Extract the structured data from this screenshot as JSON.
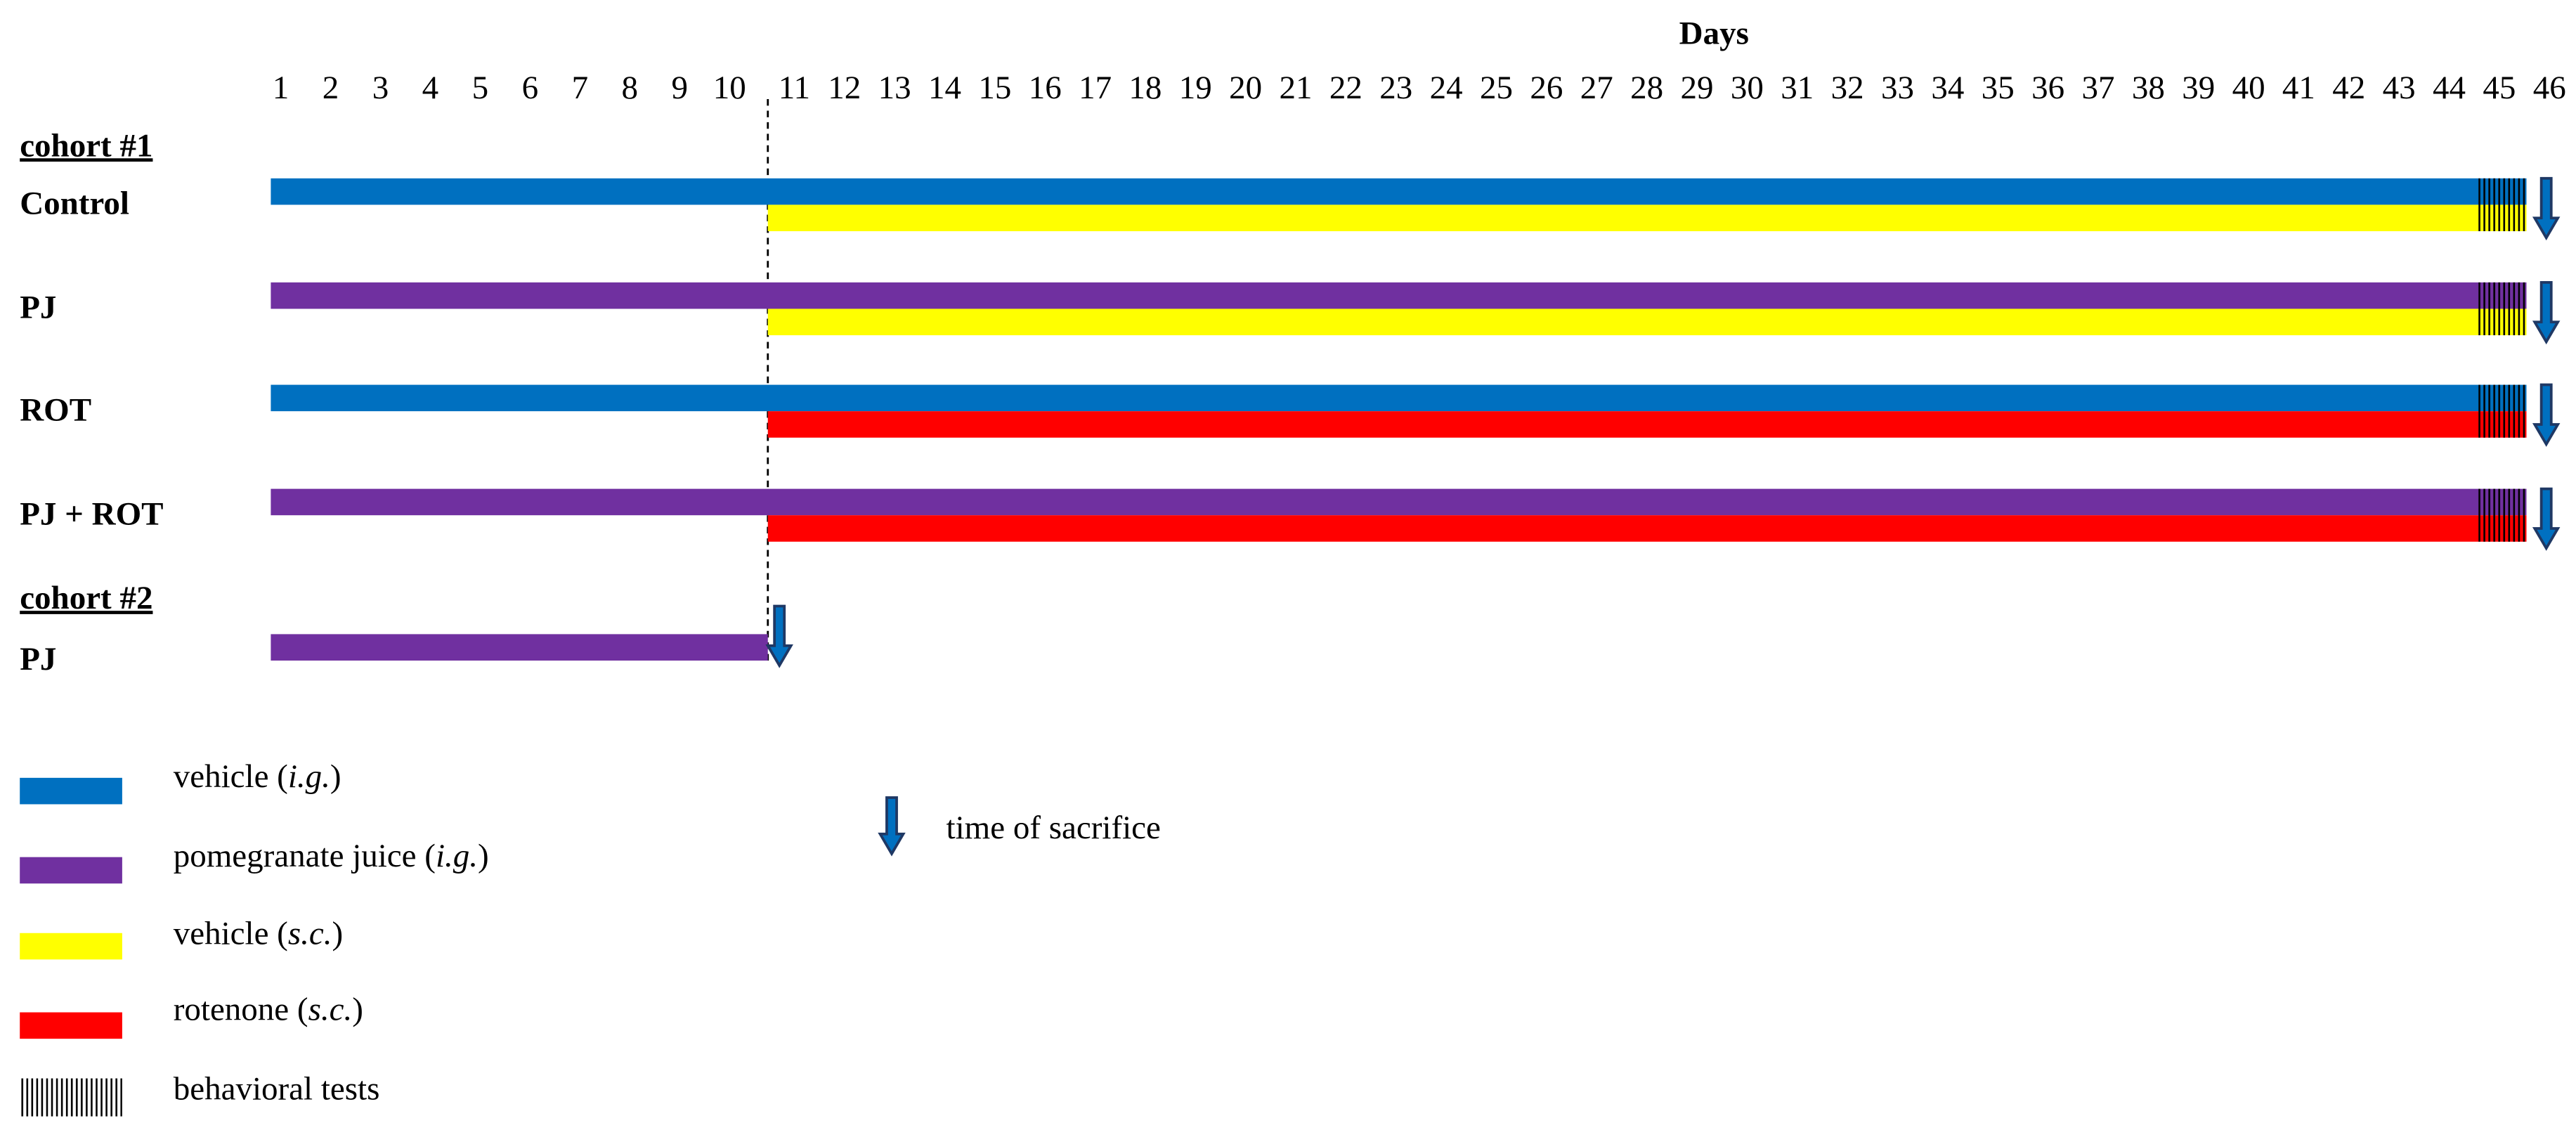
{
  "header": {
    "title": "Days",
    "days": [
      "1",
      "2",
      "3",
      "4",
      "5",
      "6",
      "7",
      "8",
      "9",
      "10",
      "11",
      "12",
      "13",
      "14",
      "15",
      "16",
      "17",
      "18",
      "19",
      "20",
      "21",
      "22",
      "23",
      "24",
      "25",
      "26",
      "27",
      "28",
      "29",
      "30",
      "31",
      "32",
      "33",
      "34",
      "35",
      "36",
      "37",
      "38",
      "39",
      "40",
      "41",
      "42",
      "43",
      "44",
      "45",
      "46"
    ]
  },
  "cohort_1": {
    "label": "cohort #1",
    "rows": [
      "Control",
      "PJ",
      "ROT",
      "PJ + ROT"
    ]
  },
  "cohort_2": {
    "label": "cohort #2",
    "rows": [
      "PJ"
    ]
  },
  "legend": {
    "items": [
      {
        "parts": [
          "vehicle (",
          "i.g.",
          ")"
        ]
      },
      {
        "parts": [
          "pomegranate juice (",
          "i.g.",
          ")"
        ]
      },
      {
        "parts": [
          "vehicle (",
          "s.c.",
          ")"
        ]
      },
      {
        "parts": [
          "rotenone (",
          "s.c.",
          ")"
        ]
      },
      {
        "parts": [
          "behavioral tests"
        ]
      }
    ],
    "sacrifice": "time of sacrifice"
  }
}
